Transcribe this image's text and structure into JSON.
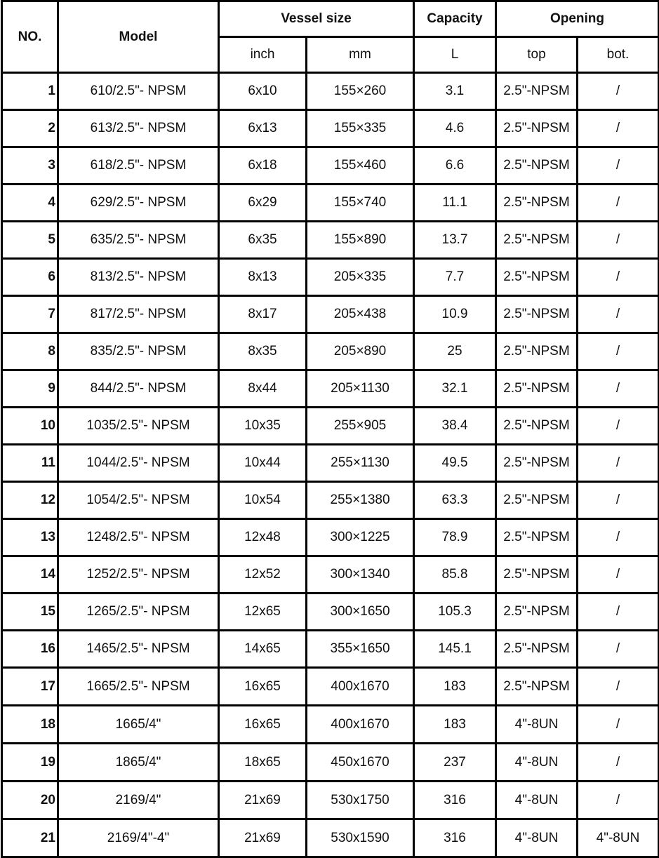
{
  "header": {
    "no": "NO.",
    "model": "Model",
    "vessel_size": "Vessel size",
    "capacity": "Capacity",
    "opening": "Opening",
    "inch": "inch",
    "mm": "mm",
    "liters": "L",
    "top": "top",
    "bottom": "bot."
  },
  "rows": [
    [
      "1",
      "610/2.5\"- NPSM",
      "6x10",
      "155×260",
      "3.1",
      "2.5\"-NPSM",
      "/"
    ],
    [
      "2",
      "613/2.5\"- NPSM",
      "6x13",
      "155×335",
      "4.6",
      "2.5\"-NPSM",
      "/"
    ],
    [
      "3",
      "618/2.5\"- NPSM",
      "6x18",
      "155×460",
      "6.6",
      "2.5\"-NPSM",
      "/"
    ],
    [
      "4",
      "629/2.5\"- NPSM",
      "6x29",
      "155×740",
      "11.1",
      "2.5\"-NPSM",
      "/"
    ],
    [
      "5",
      "635/2.5\"- NPSM",
      "6x35",
      "155×890",
      "13.7",
      "2.5\"-NPSM",
      "/"
    ],
    [
      "6",
      "813/2.5\"- NPSM",
      "8x13",
      "205×335",
      "7.7",
      "2.5\"-NPSM",
      "/"
    ],
    [
      "7",
      "817/2.5\"- NPSM",
      "8x17",
      "205×438",
      "10.9",
      "2.5\"-NPSM",
      "/"
    ],
    [
      "8",
      "835/2.5\"- NPSM",
      "8x35",
      "205×890",
      "25",
      "2.5\"-NPSM",
      "/"
    ],
    [
      "9",
      "844/2.5\"- NPSM",
      "8x44",
      "205×1130",
      "32.1",
      "2.5\"-NPSM",
      "/"
    ],
    [
      "10",
      "1035/2.5\"- NPSM",
      "10x35",
      "255×905",
      "38.4",
      "2.5\"-NPSM",
      "/"
    ],
    [
      "11",
      "1044/2.5\"- NPSM",
      "10x44",
      "255×1130",
      "49.5",
      "2.5\"-NPSM",
      "/"
    ],
    [
      "12",
      "1054/2.5\"- NPSM",
      "10x54",
      "255×1380",
      "63.3",
      "2.5\"-NPSM",
      "/"
    ],
    [
      "13",
      "1248/2.5\"- NPSM",
      "12x48",
      "300×1225",
      "78.9",
      "2.5\"-NPSM",
      "/"
    ],
    [
      "14",
      "1252/2.5\"- NPSM",
      "12x52",
      "300×1340",
      "85.8",
      "2.5\"-NPSM",
      "/"
    ],
    [
      "15",
      "1265/2.5\"- NPSM",
      "12x65",
      "300×1650",
      "105.3",
      "2.5\"-NPSM",
      "/"
    ],
    [
      "16",
      "1465/2.5\"- NPSM",
      "14x65",
      "355×1650",
      "145.1",
      "2.5\"-NPSM",
      "/"
    ],
    [
      "17",
      "1665/2.5\"- NPSM",
      "16x65",
      "400x1670",
      "183",
      "2.5\"-NPSM",
      "/"
    ],
    [
      "18",
      "1665/4\"",
      "16x65",
      "400x1670",
      "183",
      "4\"-8UN",
      "/"
    ],
    [
      "19",
      "1865/4\"",
      "18x65",
      "450x1670",
      "237",
      "4\"-8UN",
      "/"
    ],
    [
      "20",
      "2169/4\"",
      "21x69",
      "530x1750",
      "316",
      "4\"-8UN",
      "/"
    ],
    [
      "21",
      "2169/4\"-4\"",
      "21x69",
      "530x1590",
      "316",
      "4\"-8UN",
      "4\"-8UN"
    ]
  ]
}
